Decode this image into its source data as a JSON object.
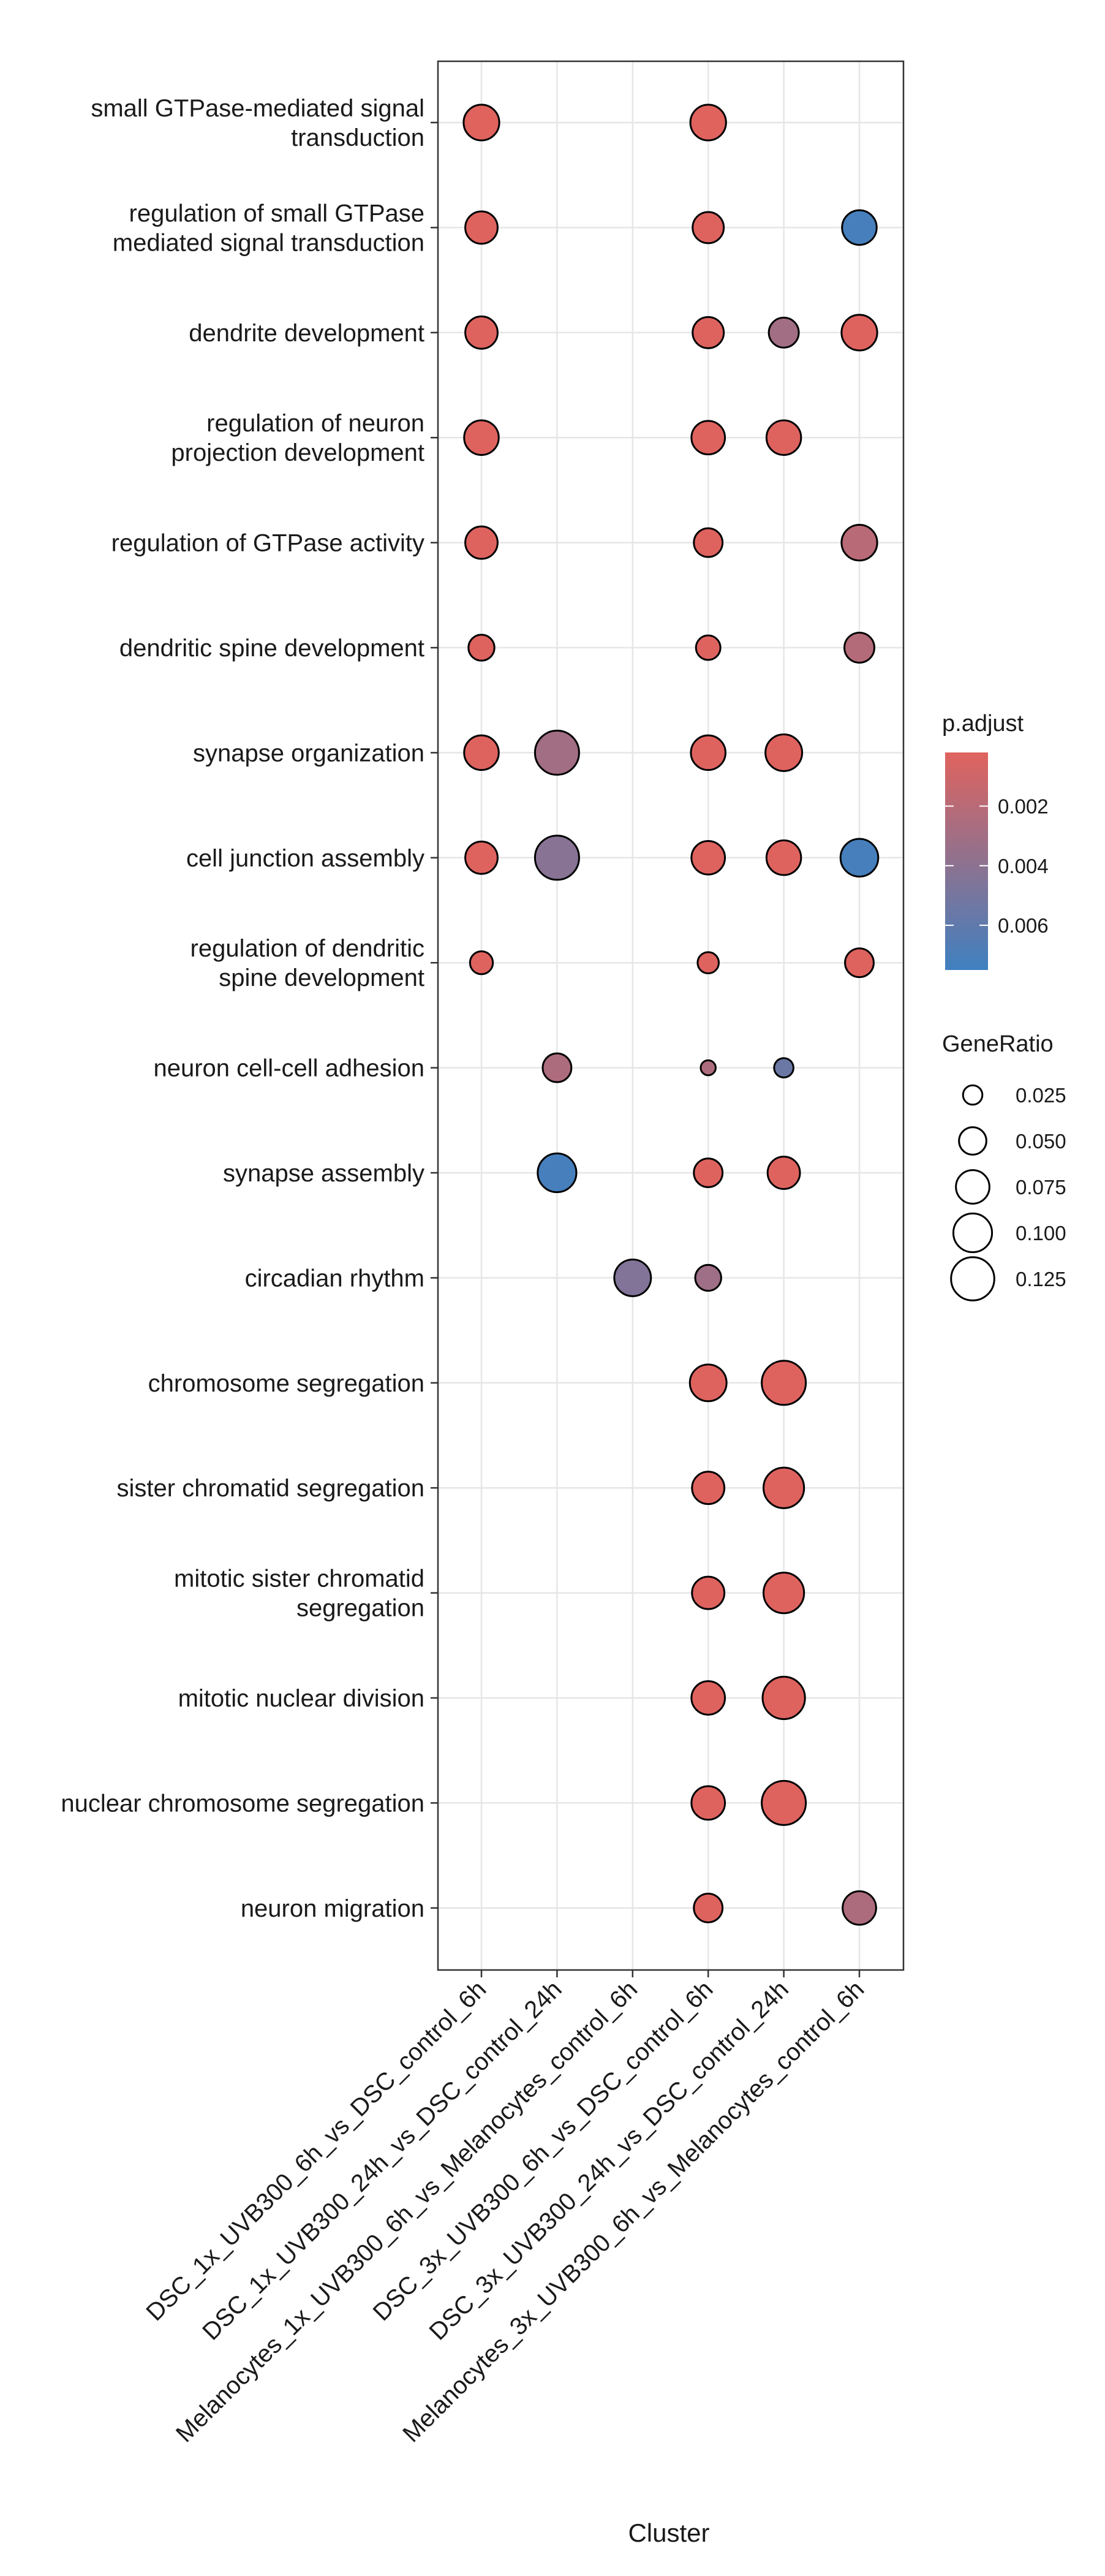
{
  "chart_data": {
    "type": "scatter",
    "title": "",
    "xlabel": "Cluster",
    "ylabel": "",
    "categories_x": [
      "DSC_1x_UVB300_6h_vs_DSC_control_6h",
      "DSC_1x_UVB300_24h_vs_DSC_control_24h",
      "Melanocytes_1x_UVB300_6h_vs_Melanocytes_control_6h",
      "DSC_3x_UVB300_6h_vs_DSC_control_6h",
      "DSC_3x_UVB300_24h_vs_DSC_control_24h",
      "Melanocytes_3x_UVB300_6h_vs_Melanocytes_control_6h"
    ],
    "categories_y": [
      [
        "small GTPase-mediated signal",
        "transduction"
      ],
      [
        "regulation of small GTPase",
        "mediated signal transduction"
      ],
      [
        "dendrite development"
      ],
      [
        "regulation of neuron",
        "projection development"
      ],
      [
        "regulation of GTPase activity"
      ],
      [
        "dendritic spine development"
      ],
      [
        "synapse organization"
      ],
      [
        "cell junction assembly"
      ],
      [
        "regulation of dendritic",
        "spine development"
      ],
      [
        "neuron cell-cell adhesion"
      ],
      [
        "synapse assembly"
      ],
      [
        "circadian rhythm"
      ],
      [
        "chromosome segregation"
      ],
      [
        "sister chromatid segregation"
      ],
      [
        "mitotic sister chromatid",
        "segregation"
      ],
      [
        "mitotic nuclear division"
      ],
      [
        "nuclear chromosome segregation"
      ],
      [
        "neuron migration"
      ]
    ],
    "points": [
      {
        "x": 0,
        "y": 0,
        "gene_ratio": 0.085,
        "p_adjust": 0.0002
      },
      {
        "x": 3,
        "y": 0,
        "gene_ratio": 0.085,
        "p_adjust": 0.0002
      },
      {
        "x": 0,
        "y": 1,
        "gene_ratio": 0.07,
        "p_adjust": 0.0003
      },
      {
        "x": 3,
        "y": 1,
        "gene_ratio": 0.065,
        "p_adjust": 0.0003
      },
      {
        "x": 5,
        "y": 1,
        "gene_ratio": 0.08,
        "p_adjust": 0.0072
      },
      {
        "x": 0,
        "y": 2,
        "gene_ratio": 0.07,
        "p_adjust": 0.0003
      },
      {
        "x": 3,
        "y": 2,
        "gene_ratio": 0.065,
        "p_adjust": 0.0003
      },
      {
        "x": 4,
        "y": 2,
        "gene_ratio": 0.06,
        "p_adjust": 0.003
      },
      {
        "x": 5,
        "y": 2,
        "gene_ratio": 0.085,
        "p_adjust": 0.0003
      },
      {
        "x": 0,
        "y": 3,
        "gene_ratio": 0.08,
        "p_adjust": 0.0003
      },
      {
        "x": 3,
        "y": 3,
        "gene_ratio": 0.075,
        "p_adjust": 0.0003
      },
      {
        "x": 4,
        "y": 3,
        "gene_ratio": 0.08,
        "p_adjust": 0.0003
      },
      {
        "x": 0,
        "y": 4,
        "gene_ratio": 0.07,
        "p_adjust": 0.0003
      },
      {
        "x": 3,
        "y": 4,
        "gene_ratio": 0.055,
        "p_adjust": 0.0003
      },
      {
        "x": 5,
        "y": 4,
        "gene_ratio": 0.085,
        "p_adjust": 0.002
      },
      {
        "x": 0,
        "y": 5,
        "gene_ratio": 0.045,
        "p_adjust": 0.0003
      },
      {
        "x": 3,
        "y": 5,
        "gene_ratio": 0.04,
        "p_adjust": 0.0003
      },
      {
        "x": 5,
        "y": 5,
        "gene_ratio": 0.06,
        "p_adjust": 0.0022
      },
      {
        "x": 0,
        "y": 6,
        "gene_ratio": 0.08,
        "p_adjust": 0.0003
      },
      {
        "x": 1,
        "y": 6,
        "gene_ratio": 0.13,
        "p_adjust": 0.003
      },
      {
        "x": 3,
        "y": 6,
        "gene_ratio": 0.08,
        "p_adjust": 0.0003
      },
      {
        "x": 4,
        "y": 6,
        "gene_ratio": 0.09,
        "p_adjust": 0.0003
      },
      {
        "x": 0,
        "y": 7,
        "gene_ratio": 0.07,
        "p_adjust": 0.0003
      },
      {
        "x": 1,
        "y": 7,
        "gene_ratio": 0.13,
        "p_adjust": 0.0042
      },
      {
        "x": 3,
        "y": 7,
        "gene_ratio": 0.075,
        "p_adjust": 0.0003
      },
      {
        "x": 4,
        "y": 7,
        "gene_ratio": 0.08,
        "p_adjust": 0.0003
      },
      {
        "x": 5,
        "y": 7,
        "gene_ratio": 0.095,
        "p_adjust": 0.0072
      },
      {
        "x": 0,
        "y": 8,
        "gene_ratio": 0.035,
        "p_adjust": 0.0003
      },
      {
        "x": 3,
        "y": 8,
        "gene_ratio": 0.03,
        "p_adjust": 0.0003
      },
      {
        "x": 5,
        "y": 8,
        "gene_ratio": 0.055,
        "p_adjust": 0.0003
      },
      {
        "x": 1,
        "y": 9,
        "gene_ratio": 0.055,
        "p_adjust": 0.0025
      },
      {
        "x": 3,
        "y": 9,
        "gene_ratio": 0.015,
        "p_adjust": 0.0025
      },
      {
        "x": 4,
        "y": 9,
        "gene_ratio": 0.025,
        "p_adjust": 0.0055
      },
      {
        "x": 1,
        "y": 10,
        "gene_ratio": 0.1,
        "p_adjust": 0.0072
      },
      {
        "x": 3,
        "y": 10,
        "gene_ratio": 0.055,
        "p_adjust": 0.0003
      },
      {
        "x": 4,
        "y": 10,
        "gene_ratio": 0.07,
        "p_adjust": 0.0003
      },
      {
        "x": 2,
        "y": 11,
        "gene_ratio": 0.09,
        "p_adjust": 0.0045
      },
      {
        "x": 3,
        "y": 11,
        "gene_ratio": 0.045,
        "p_adjust": 0.0032
      },
      {
        "x": 3,
        "y": 12,
        "gene_ratio": 0.09,
        "p_adjust": 0.0003
      },
      {
        "x": 4,
        "y": 12,
        "gene_ratio": 0.13,
        "p_adjust": 0.0003
      },
      {
        "x": 3,
        "y": 13,
        "gene_ratio": 0.07,
        "p_adjust": 0.0003
      },
      {
        "x": 4,
        "y": 13,
        "gene_ratio": 0.11,
        "p_adjust": 0.0003
      },
      {
        "x": 3,
        "y": 14,
        "gene_ratio": 0.07,
        "p_adjust": 0.0003
      },
      {
        "x": 4,
        "y": 14,
        "gene_ratio": 0.11,
        "p_adjust": 0.0003
      },
      {
        "x": 3,
        "y": 15,
        "gene_ratio": 0.075,
        "p_adjust": 0.0003
      },
      {
        "x": 4,
        "y": 15,
        "gene_ratio": 0.12,
        "p_adjust": 0.0003
      },
      {
        "x": 3,
        "y": 16,
        "gene_ratio": 0.075,
        "p_adjust": 0.0003
      },
      {
        "x": 4,
        "y": 16,
        "gene_ratio": 0.13,
        "p_adjust": 0.0003
      },
      {
        "x": 3,
        "y": 17,
        "gene_ratio": 0.055,
        "p_adjust": 0.0003
      },
      {
        "x": 5,
        "y": 17,
        "gene_ratio": 0.075,
        "p_adjust": 0.0025
      }
    ],
    "color_legend": {
      "title": "p.adjust",
      "ticks": [
        0.002,
        0.004,
        0.006
      ],
      "tick_labels": [
        "0.002",
        "0.004",
        "0.006"
      ],
      "range": [
        0.0002,
        0.0075
      ],
      "low_color": "#e0635e",
      "high_color": "#3f80c0"
    },
    "size_legend": {
      "title": "GeneRatio",
      "values": [
        0.025,
        0.05,
        0.075,
        0.1,
        0.125
      ],
      "labels": [
        "0.025",
        "0.050",
        "0.075",
        "0.100",
        "0.125"
      ]
    },
    "grid": true,
    "legend_position": "right"
  }
}
